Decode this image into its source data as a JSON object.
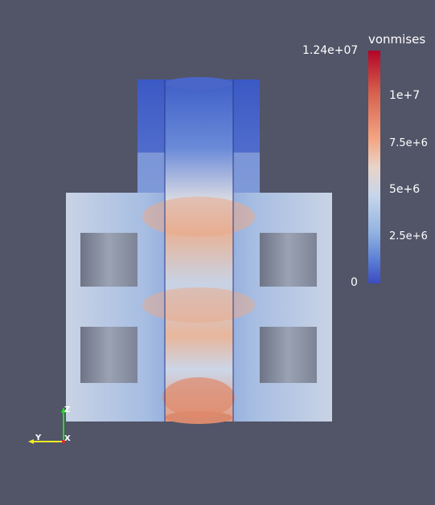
{
  "legend": {
    "title": "vonmises",
    "max_label": "1.24e+07",
    "min_label": "0",
    "ticks": [
      "1e+7",
      "7.5e+6",
      "5e+6",
      "2.5e+6"
    ],
    "colormap": [
      "#b40426",
      "#d6604d",
      "#f4a582",
      "#e8d3c8",
      "#c7d6ea",
      "#92b4e0",
      "#5b7ed6",
      "#3b4cc0"
    ]
  },
  "axes": {
    "z_label": "Z",
    "y_label": "Y",
    "x_label": "X",
    "colors": {
      "z": "#22dd22",
      "y": "#eeee22",
      "x": "#ee2222"
    }
  },
  "colors": {
    "background": "#525468"
  }
}
